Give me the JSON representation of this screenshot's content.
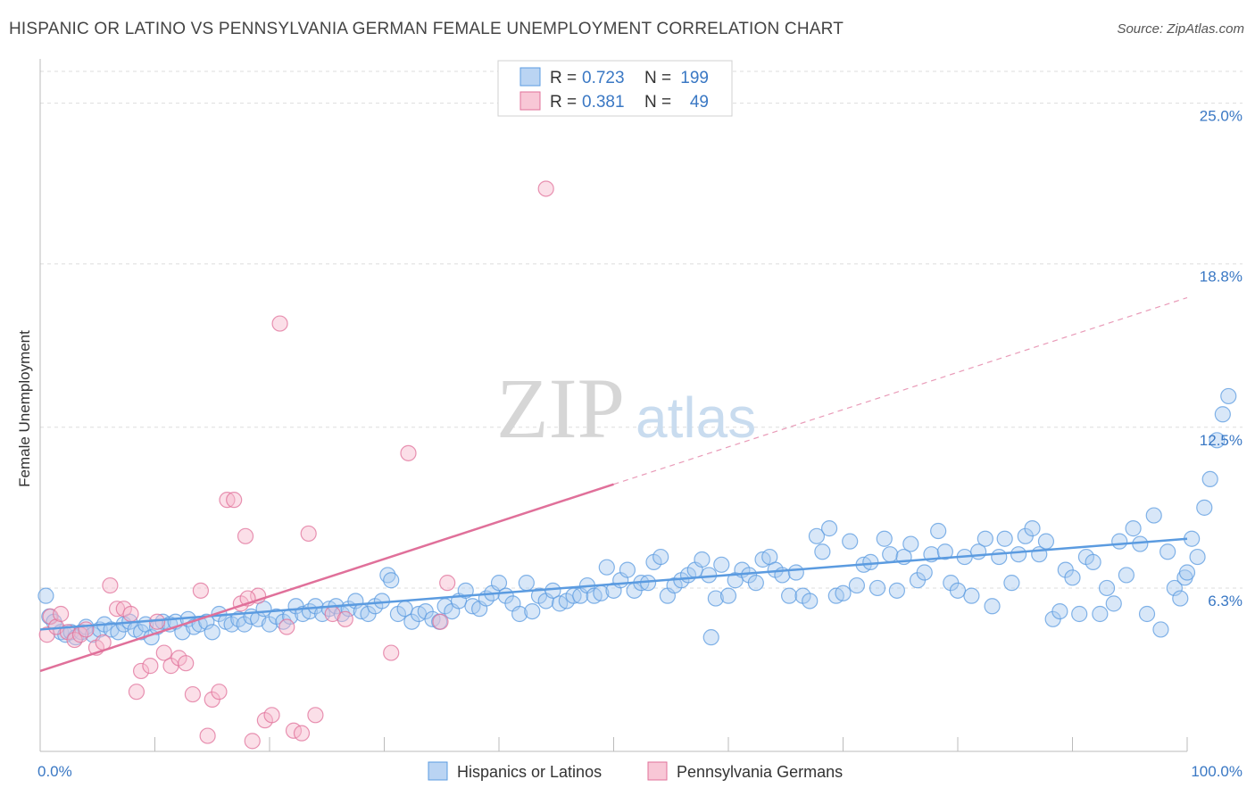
{
  "chart_data": {
    "type": "scatter",
    "title": "HISPANIC OR LATINO VS PENNSYLVANIA GERMAN FEMALE UNEMPLOYMENT CORRELATION CHART",
    "source": "Source: ZipAtlas.com",
    "ylabel": "Female Unemployment",
    "xlim": [
      0,
      100
    ],
    "ylim": [
      0,
      26.5
    ],
    "x_tick_labels": [
      "0.0%",
      "100.0%"
    ],
    "y_ticks": [
      {
        "value": 6.3,
        "label": "6.3%"
      },
      {
        "value": 12.5,
        "label": "12.5%"
      },
      {
        "value": 18.8,
        "label": "18.8%"
      },
      {
        "value": 25.0,
        "label": "25.0%"
      }
    ],
    "legend": {
      "position": "top-center",
      "entries": [
        {
          "r_label": "R =",
          "r_value": "0.723",
          "n_label": "N =",
          "n_value": "199"
        },
        {
          "r_label": "R =",
          "r_value": "0.381",
          "n_label": "N =",
          "n_value": "49"
        }
      ]
    },
    "watermark": {
      "zip": "ZIP",
      "atlas": "atlas"
    },
    "series": [
      {
        "name": "Hispanics or Latinos",
        "color": "#5b9be0",
        "fill": "#a9c9f0",
        "trend": {
          "x0": 0,
          "y0": 4.7,
          "x1": 100,
          "y1": 8.2,
          "extend_to": 100
        },
        "points": [
          [
            0.5,
            6.0
          ],
          [
            0.8,
            5.2
          ],
          [
            1.2,
            5.0
          ],
          [
            1.8,
            4.6
          ],
          [
            2.2,
            4.5
          ],
          [
            2.7,
            4.6
          ],
          [
            3.1,
            4.4
          ],
          [
            3.6,
            4.6
          ],
          [
            4.0,
            4.8
          ],
          [
            4.6,
            4.5
          ],
          [
            5.2,
            4.7
          ],
          [
            5.6,
            4.9
          ],
          [
            6.2,
            4.7
          ],
          [
            6.8,
            4.6
          ],
          [
            7.3,
            4.9
          ],
          [
            7.8,
            5.0
          ],
          [
            8.3,
            4.7
          ],
          [
            8.8,
            4.6
          ],
          [
            9.2,
            4.9
          ],
          [
            9.7,
            4.4
          ],
          [
            10.2,
            4.8
          ],
          [
            10.7,
            5.0
          ],
          [
            11.3,
            4.9
          ],
          [
            11.8,
            5.0
          ],
          [
            12.4,
            4.6
          ],
          [
            12.9,
            5.1
          ],
          [
            13.4,
            4.8
          ],
          [
            13.9,
            4.9
          ],
          [
            14.5,
            5.0
          ],
          [
            15.0,
            4.6
          ],
          [
            15.6,
            5.3
          ],
          [
            16.2,
            5.0
          ],
          [
            16.7,
            4.9
          ],
          [
            17.3,
            5.1
          ],
          [
            17.8,
            4.9
          ],
          [
            18.4,
            5.2
          ],
          [
            19.0,
            5.1
          ],
          [
            19.5,
            5.5
          ],
          [
            20.0,
            4.9
          ],
          [
            20.6,
            5.2
          ],
          [
            21.2,
            5.0
          ],
          [
            21.8,
            5.2
          ],
          [
            22.3,
            5.6
          ],
          [
            22.9,
            5.3
          ],
          [
            23.5,
            5.4
          ],
          [
            24.0,
            5.6
          ],
          [
            24.6,
            5.3
          ],
          [
            25.2,
            5.5
          ],
          [
            25.8,
            5.6
          ],
          [
            26.3,
            5.3
          ],
          [
            26.9,
            5.5
          ],
          [
            27.5,
            5.8
          ],
          [
            28.0,
            5.4
          ],
          [
            28.6,
            5.3
          ],
          [
            29.2,
            5.6
          ],
          [
            29.8,
            5.8
          ],
          [
            30.3,
            6.8
          ],
          [
            30.6,
            6.6
          ],
          [
            31.2,
            5.3
          ],
          [
            31.8,
            5.5
          ],
          [
            32.4,
            5.0
          ],
          [
            33.0,
            5.3
          ],
          [
            33.6,
            5.4
          ],
          [
            34.2,
            5.1
          ],
          [
            34.8,
            5.0
          ],
          [
            35.3,
            5.6
          ],
          [
            35.9,
            5.4
          ],
          [
            36.5,
            5.8
          ],
          [
            37.1,
            6.2
          ],
          [
            37.7,
            5.6
          ],
          [
            38.3,
            5.5
          ],
          [
            38.9,
            5.9
          ],
          [
            39.4,
            6.1
          ],
          [
            40.0,
            6.5
          ],
          [
            40.6,
            6.0
          ],
          [
            41.2,
            5.7
          ],
          [
            41.8,
            5.3
          ],
          [
            42.4,
            6.5
          ],
          [
            42.9,
            5.4
          ],
          [
            43.5,
            6.0
          ],
          [
            44.1,
            5.8
          ],
          [
            44.7,
            6.2
          ],
          [
            45.3,
            5.7
          ],
          [
            45.9,
            5.8
          ],
          [
            46.5,
            6.0
          ],
          [
            47.1,
            6.0
          ],
          [
            47.7,
            6.4
          ],
          [
            48.3,
            6.0
          ],
          [
            48.9,
            6.1
          ],
          [
            49.4,
            7.1
          ],
          [
            50.0,
            6.2
          ],
          [
            50.6,
            6.6
          ],
          [
            51.2,
            7.0
          ],
          [
            51.8,
            6.2
          ],
          [
            52.4,
            6.5
          ],
          [
            53.0,
            6.5
          ],
          [
            53.5,
            7.3
          ],
          [
            54.1,
            7.5
          ],
          [
            54.7,
            6.0
          ],
          [
            55.3,
            6.4
          ],
          [
            55.9,
            6.6
          ],
          [
            56.5,
            6.8
          ],
          [
            57.1,
            7.0
          ],
          [
            57.7,
            7.4
          ],
          [
            58.3,
            6.8
          ],
          [
            58.9,
            5.9
          ],
          [
            59.4,
            7.2
          ],
          [
            60.0,
            6.0
          ],
          [
            60.6,
            6.6
          ],
          [
            61.2,
            7.0
          ],
          [
            61.8,
            6.8
          ],
          [
            62.4,
            6.5
          ],
          [
            63.0,
            7.4
          ],
          [
            63.6,
            7.5
          ],
          [
            64.1,
            7.0
          ],
          [
            64.7,
            6.8
          ],
          [
            65.3,
            6.0
          ],
          [
            65.9,
            6.9
          ],
          [
            66.5,
            6.0
          ],
          [
            67.1,
            5.8
          ],
          [
            67.7,
            8.3
          ],
          [
            68.2,
            7.7
          ],
          [
            68.8,
            8.6
          ],
          [
            69.4,
            6.0
          ],
          [
            70.0,
            6.1
          ],
          [
            70.6,
            8.1
          ],
          [
            71.2,
            6.4
          ],
          [
            71.8,
            7.2
          ],
          [
            72.4,
            7.3
          ],
          [
            73.0,
            6.3
          ],
          [
            73.6,
            8.2
          ],
          [
            74.1,
            7.6
          ],
          [
            74.7,
            6.2
          ],
          [
            75.3,
            7.5
          ],
          [
            75.9,
            8.0
          ],
          [
            76.5,
            6.6
          ],
          [
            77.1,
            6.9
          ],
          [
            77.7,
            7.6
          ],
          [
            78.3,
            8.5
          ],
          [
            78.9,
            7.7
          ],
          [
            79.4,
            6.5
          ],
          [
            80.0,
            6.2
          ],
          [
            80.6,
            7.5
          ],
          [
            81.2,
            6.0
          ],
          [
            81.8,
            7.7
          ],
          [
            82.4,
            8.2
          ],
          [
            83.0,
            5.6
          ],
          [
            83.6,
            7.5
          ],
          [
            84.1,
            8.2
          ],
          [
            84.7,
            6.5
          ],
          [
            85.3,
            7.6
          ],
          [
            85.9,
            8.3
          ],
          [
            86.5,
            8.6
          ],
          [
            87.1,
            7.6
          ],
          [
            87.7,
            8.1
          ],
          [
            88.3,
            5.1
          ],
          [
            88.9,
            5.4
          ],
          [
            89.4,
            7.0
          ],
          [
            90.0,
            6.7
          ],
          [
            90.6,
            5.3
          ],
          [
            91.2,
            7.5
          ],
          [
            91.8,
            7.3
          ],
          [
            92.4,
            5.3
          ],
          [
            93.0,
            6.3
          ],
          [
            93.6,
            5.7
          ],
          [
            94.1,
            8.1
          ],
          [
            94.7,
            6.8
          ],
          [
            95.3,
            8.6
          ],
          [
            95.9,
            8.0
          ],
          [
            96.5,
            5.3
          ],
          [
            97.1,
            9.1
          ],
          [
            97.7,
            4.7
          ],
          [
            98.3,
            7.7
          ],
          [
            98.9,
            6.3
          ],
          [
            99.4,
            5.9
          ],
          [
            99.8,
            6.7
          ],
          [
            100.0,
            6.9
          ],
          [
            100.4,
            8.2
          ],
          [
            100.9,
            7.5
          ],
          [
            101.5,
            9.4
          ],
          [
            102.0,
            10.5
          ],
          [
            102.6,
            12.0
          ],
          [
            103.1,
            13.0
          ],
          [
            103.6,
            13.7
          ],
          [
            58.5,
            4.4
          ]
        ]
      },
      {
        "name": "Pennsylvania Germans",
        "color": "#e0709a",
        "fill": "#f6b9cc",
        "trend": {
          "x0": 0,
          "y0": 3.1,
          "x1": 50,
          "y1": 10.3,
          "extend_to": 100
        },
        "points": [
          [
            0.6,
            4.5
          ],
          [
            0.9,
            5.2
          ],
          [
            1.4,
            4.8
          ],
          [
            1.8,
            5.3
          ],
          [
            2.4,
            4.6
          ],
          [
            3.0,
            4.3
          ],
          [
            3.5,
            4.5
          ],
          [
            4.0,
            4.7
          ],
          [
            4.9,
            4.0
          ],
          [
            5.5,
            4.2
          ],
          [
            6.1,
            6.4
          ],
          [
            6.7,
            5.5
          ],
          [
            7.3,
            5.5
          ],
          [
            7.9,
            5.3
          ],
          [
            8.4,
            2.3
          ],
          [
            8.8,
            3.1
          ],
          [
            9.6,
            3.3
          ],
          [
            10.2,
            5.0
          ],
          [
            10.8,
            3.8
          ],
          [
            11.4,
            3.3
          ],
          [
            12.1,
            3.6
          ],
          [
            12.7,
            3.4
          ],
          [
            13.3,
            2.2
          ],
          [
            14.0,
            6.2
          ],
          [
            14.6,
            0.6
          ],
          [
            15.0,
            2.0
          ],
          [
            15.6,
            2.3
          ],
          [
            16.3,
            9.7
          ],
          [
            16.9,
            9.7
          ],
          [
            17.5,
            5.7
          ],
          [
            17.9,
            8.3
          ],
          [
            18.5,
            0.4
          ],
          [
            19.0,
            6.0
          ],
          [
            19.6,
            1.2
          ],
          [
            20.2,
            1.4
          ],
          [
            20.9,
            16.5
          ],
          [
            21.5,
            4.8
          ],
          [
            22.1,
            0.8
          ],
          [
            22.8,
            0.7
          ],
          [
            23.4,
            8.4
          ],
          [
            24.0,
            1.4
          ],
          [
            25.5,
            5.3
          ],
          [
            26.6,
            5.1
          ],
          [
            30.6,
            3.8
          ],
          [
            32.1,
            11.5
          ],
          [
            34.9,
            5.0
          ],
          [
            35.5,
            6.5
          ],
          [
            44.1,
            21.7
          ],
          [
            18.1,
            5.9
          ]
        ]
      }
    ]
  }
}
